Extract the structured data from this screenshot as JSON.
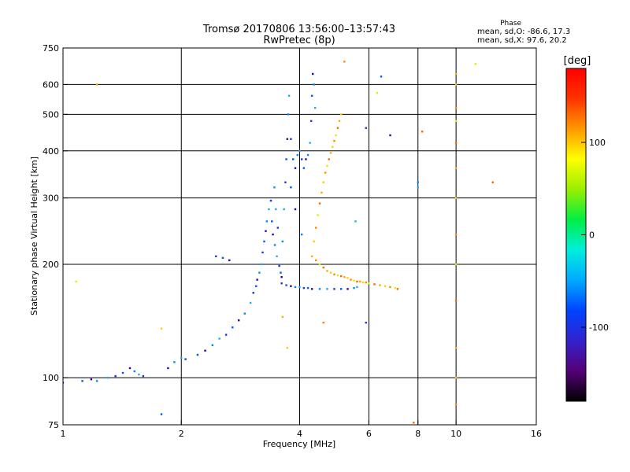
{
  "chart_data": {
    "type": "scatter",
    "title": "Tromsø 20170806 13:56:00–13:57:43",
    "subtitle": "RwPretec (8p)",
    "phase_box": {
      "heading": "Phase",
      "line_o": "mean, sd,O: -86.6, 17.3",
      "line_x": "mean, sd,X:  97.6, 20.2"
    },
    "xlabel": "Frequency [MHz]",
    "ylabel": "Stationary phase Virtual Height [km]",
    "x_scale": "log",
    "y_scale": "log",
    "xlim": [
      1,
      16
    ],
    "ylim": [
      75,
      750
    ],
    "grid": true,
    "x_ticks": [
      {
        "value": 1,
        "label": "1"
      },
      {
        "value": 2,
        "label": "2"
      },
      {
        "value": 4,
        "label": "4"
      },
      {
        "value": 6,
        "label": "6"
      },
      {
        "value": 8,
        "label": "8"
      },
      {
        "value": 10,
        "label": "10"
      },
      {
        "value": 16,
        "label": "16"
      }
    ],
    "y_ticks": [
      {
        "value": 75,
        "label": "75"
      },
      {
        "value": 100,
        "label": "100"
      },
      {
        "value": 200,
        "label": "200"
      },
      {
        "value": 300,
        "label": "300"
      },
      {
        "value": 400,
        "label": "400"
      },
      {
        "value": 500,
        "label": "500"
      },
      {
        "value": 600,
        "label": "600"
      },
      {
        "value": 750,
        "label": "750"
      }
    ],
    "x_gridlines": [
      2,
      4,
      6,
      8,
      10
    ],
    "y_gridlines": [
      100,
      200,
      300,
      400,
      500,
      600
    ],
    "colorbar": {
      "label": "[deg]",
      "range": [
        -180,
        180
      ],
      "ticks": [
        {
          "value": 100,
          "label": "100"
        },
        {
          "value": 0,
          "label": "0"
        },
        {
          "value": -100,
          "label": "-100"
        }
      ],
      "stops": [
        "#000000",
        "#550077",
        "#3322cc",
        "#0044ff",
        "#00aaff",
        "#00eedd",
        "#00ee44",
        "#99ee00",
        "#ffff00",
        "#ff9900",
        "#ff3300",
        "#ff0000"
      ]
    },
    "series": [
      {
        "values": [
          [
            1.0,
            97
          ],
          [
            1.12,
            98
          ],
          [
            1.18,
            99
          ],
          [
            1.22,
            98
          ],
          [
            1.3,
            100
          ],
          [
            1.36,
            101
          ],
          [
            1.42,
            103
          ],
          [
            1.48,
            106
          ],
          [
            1.52,
            104
          ],
          [
            1.56,
            102
          ],
          [
            1.6,
            101
          ],
          [
            1.78,
            80
          ],
          [
            1.85,
            106
          ],
          [
            1.92,
            110
          ],
          [
            2.0,
            113
          ],
          [
            2.05,
            112
          ],
          [
            2.2,
            115
          ],
          [
            2.3,
            118
          ],
          [
            2.4,
            122
          ],
          [
            2.5,
            127
          ],
          [
            2.6,
            130
          ],
          [
            2.7,
            136
          ],
          [
            2.8,
            142
          ],
          [
            2.9,
            148
          ],
          [
            3.0,
            158
          ],
          [
            3.05,
            168
          ],
          [
            3.1,
            175
          ],
          [
            3.12,
            182
          ],
          [
            3.16,
            190
          ],
          [
            3.2,
            200
          ],
          [
            3.22,
            215
          ],
          [
            3.25,
            230
          ],
          [
            3.28,
            245
          ],
          [
            3.3,
            260
          ],
          [
            3.34,
            280
          ],
          [
            3.38,
            295
          ],
          [
            3.4,
            260
          ],
          [
            3.42,
            240
          ],
          [
            3.46,
            225
          ],
          [
            3.5,
            210
          ],
          [
            3.55,
            198
          ],
          [
            3.58,
            190
          ],
          [
            3.6,
            185
          ],
          [
            3.62,
            230
          ],
          [
            3.65,
            280
          ],
          [
            3.68,
            330
          ],
          [
            3.7,
            380
          ],
          [
            3.72,
            430
          ],
          [
            3.74,
            500
          ],
          [
            3.76,
            560
          ],
          [
            3.8,
            430
          ],
          [
            3.85,
            380
          ],
          [
            3.9,
            360
          ],
          [
            3.95,
            390
          ],
          [
            4.0,
            400
          ],
          [
            4.05,
            380
          ],
          [
            4.1,
            360
          ],
          [
            4.15,
            380
          ],
          [
            4.2,
            390
          ],
          [
            4.25,
            420
          ],
          [
            4.28,
            480
          ],
          [
            4.3,
            560
          ],
          [
            4.32,
            640
          ],
          [
            4.35,
            600
          ],
          [
            4.38,
            520
          ],
          [
            3.6,
            178
          ],
          [
            3.7,
            176
          ],
          [
            3.8,
            175
          ],
          [
            3.9,
            174
          ],
          [
            4.0,
            174
          ],
          [
            4.1,
            173
          ],
          [
            4.2,
            173
          ],
          [
            4.3,
            172
          ],
          [
            4.5,
            172
          ],
          [
            4.7,
            172
          ],
          [
            4.9,
            172
          ],
          [
            5.1,
            172
          ],
          [
            5.3,
            172
          ],
          [
            5.5,
            173
          ],
          [
            5.6,
            174
          ],
          [
            2.45,
            210
          ],
          [
            2.55,
            208
          ],
          [
            2.65,
            205
          ],
          [
            3.45,
            320
          ],
          [
            3.48,
            280
          ],
          [
            3.52,
            250
          ],
          [
            3.8,
            320
          ],
          [
            3.9,
            280
          ],
          [
            4.05,
            240
          ],
          [
            5.55,
            260
          ],
          [
            5.9,
            460
          ],
          [
            6.45,
            630
          ],
          [
            6.8,
            440
          ],
          [
            8.0,
            330
          ],
          [
            8.0,
            320
          ],
          [
            5.9,
            140
          ]
        ]
      },
      {
        "values": [
          [
            4.3,
            210
          ],
          [
            4.35,
            230
          ],
          [
            4.4,
            250
          ],
          [
            4.45,
            270
          ],
          [
            4.5,
            290
          ],
          [
            4.55,
            310
          ],
          [
            4.6,
            330
          ],
          [
            4.65,
            350
          ],
          [
            4.7,
            365
          ],
          [
            4.75,
            380
          ],
          [
            4.8,
            395
          ],
          [
            4.85,
            410
          ],
          [
            4.9,
            425
          ],
          [
            4.95,
            440
          ],
          [
            5.0,
            460
          ],
          [
            5.05,
            480
          ],
          [
            5.1,
            500
          ],
          [
            4.4,
            205
          ],
          [
            4.5,
            200
          ],
          [
            4.6,
            196
          ],
          [
            4.7,
            192
          ],
          [
            4.8,
            190
          ],
          [
            4.9,
            188
          ],
          [
            5.0,
            187
          ],
          [
            5.1,
            186
          ],
          [
            5.2,
            185
          ],
          [
            5.3,
            184
          ],
          [
            5.4,
            182
          ],
          [
            5.5,
            181
          ],
          [
            5.6,
            180
          ],
          [
            5.7,
            180
          ],
          [
            5.8,
            179
          ],
          [
            5.9,
            179
          ],
          [
            6.0,
            178
          ],
          [
            6.2,
            177
          ],
          [
            6.4,
            176
          ],
          [
            6.6,
            175
          ],
          [
            6.8,
            174
          ],
          [
            7.0,
            173
          ],
          [
            7.1,
            172
          ],
          [
            3.62,
            145
          ],
          [
            3.72,
            120
          ],
          [
            4.6,
            140
          ],
          [
            6.3,
            570
          ],
          [
            8.2,
            450
          ],
          [
            10.0,
            640
          ],
          [
            10.0,
            600
          ],
          [
            10.0,
            520
          ],
          [
            10.0,
            480
          ],
          [
            10.0,
            420
          ],
          [
            10.0,
            360
          ],
          [
            10.0,
            300
          ],
          [
            10.0,
            240
          ],
          [
            10.0,
            200
          ],
          [
            10.0,
            160
          ],
          [
            10.0,
            120
          ],
          [
            10.0,
            100
          ],
          [
            10.0,
            85
          ],
          [
            11.2,
            680
          ],
          [
            12.4,
            330
          ],
          [
            1.22,
            600
          ],
          [
            1.78,
            135
          ],
          [
            5.2,
            690
          ],
          [
            1.08,
            180
          ],
          [
            7.8,
            76
          ]
        ]
      }
    ]
  }
}
